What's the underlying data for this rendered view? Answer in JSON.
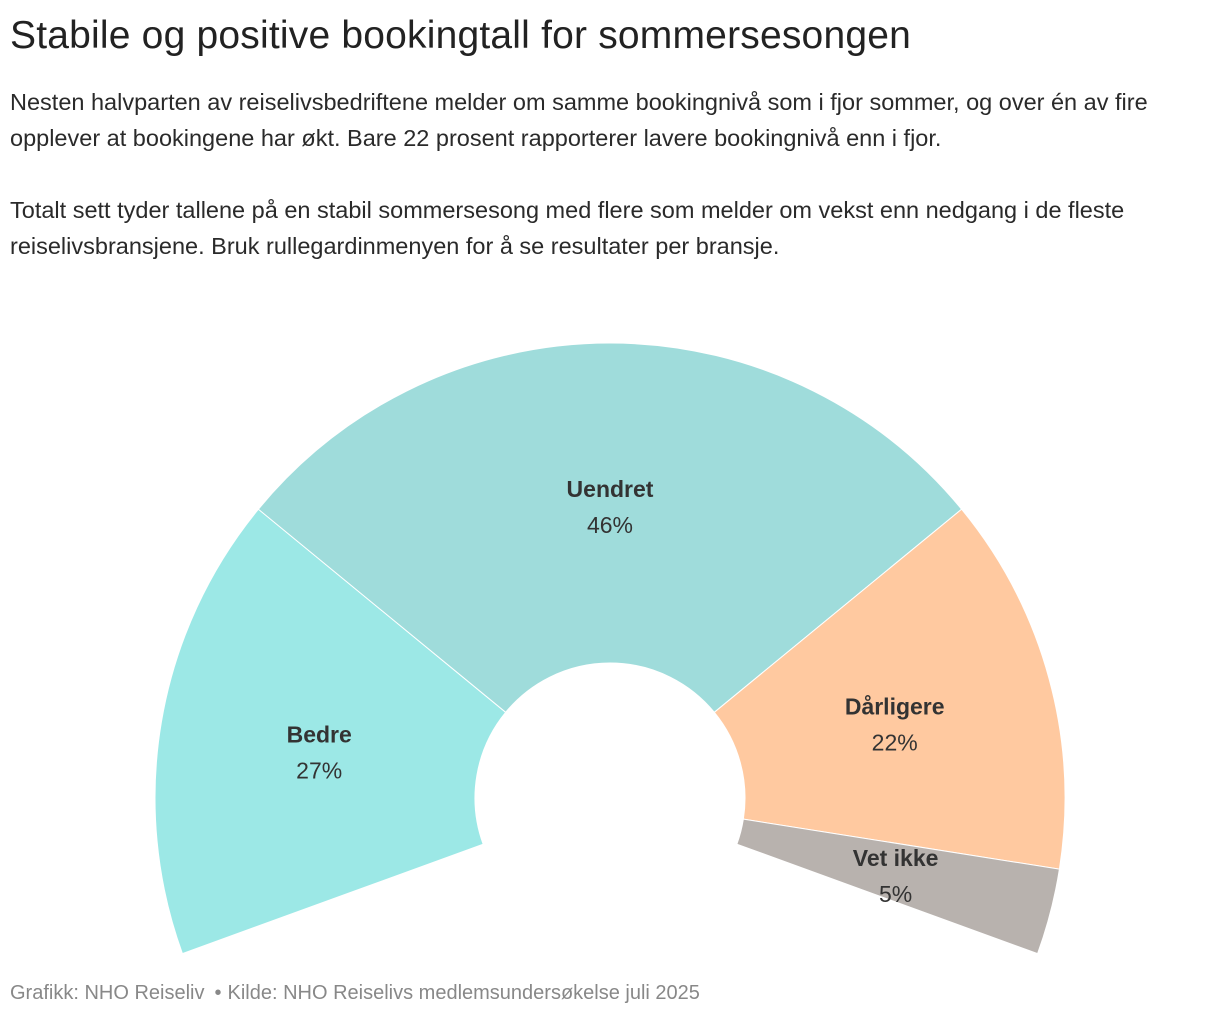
{
  "title": "Stabile og positive bookingtall for sommersesongen",
  "intro": {
    "paragraph1": "Nesten halvparten av reiselivsbedriftene melder om samme bookingnivå som i fjor sommer, og over én av fire opplever at bookingene har økt. Bare 22 prosent rapporterer lavere bookingnivå enn i fjor.",
    "paragraph2": "Totalt sett tyder tallene på en stabil sommersesong med flere som melder om vekst enn nedgang i de fleste reiselivsbransjene. Bruk rullegardinmenyen for å se resultater per bransje."
  },
  "chart_data": {
    "type": "pie",
    "variant": "semi-donut (parliament style)",
    "arc_degrees": 220,
    "title": "",
    "slices": [
      {
        "name": "Bedre",
        "value": 27,
        "label": "27%",
        "color": "#9ce8e6"
      },
      {
        "name": "Uendret",
        "value": 46,
        "label": "46%",
        "color": "#9fdcdb"
      },
      {
        "name": "Dårligere",
        "value": 22,
        "label": "22%",
        "color": "#ffc9a0"
      },
      {
        "name": "Vet ikke",
        "value": 5,
        "label": "5%",
        "color": "#b8b2ae"
      }
    ]
  },
  "footer": {
    "graphics": "Grafikk: NHO Reiseliv",
    "bullet": "•",
    "source": "Kilde: NHO Reiselivs medlemsundersøkelse juli 2025"
  }
}
